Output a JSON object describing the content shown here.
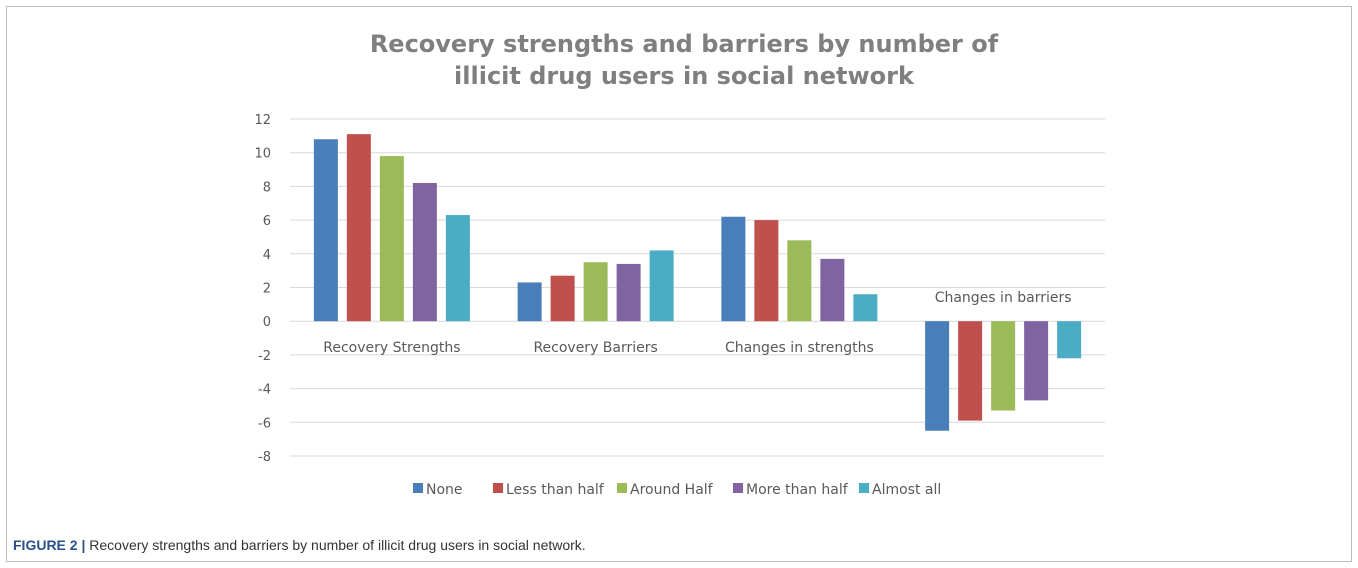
{
  "caption": {
    "label": "FIGURE 2 |",
    "text": " Recovery strengths and barriers by number of illicit drug users in social network."
  },
  "chart_data": {
    "type": "bar",
    "title": "Recovery strengths and barriers by number of illicit drug users in social network",
    "title_lines": [
      "Recovery strengths and barriers by number of",
      "illicit drug users in social network"
    ],
    "categories": [
      "Recovery Strengths",
      "Recovery Barriers",
      "Changes in strengths",
      "Changes in barriers"
    ],
    "series": [
      {
        "name": "None",
        "color": "#4a7ebb",
        "values": [
          10.8,
          2.3,
          6.2,
          -6.5
        ]
      },
      {
        "name": "Less than half",
        "color": "#c0504d",
        "values": [
          11.1,
          2.7,
          6.0,
          -5.9
        ]
      },
      {
        "name": "Around Half",
        "color": "#9bbb59",
        "values": [
          9.8,
          3.5,
          4.8,
          -5.3
        ]
      },
      {
        "name": "More than half",
        "color": "#8064a2",
        "values": [
          8.2,
          3.4,
          3.7,
          -4.7
        ]
      },
      {
        "name": "Almost all",
        "color": "#4bacc6",
        "values": [
          6.3,
          4.2,
          1.6,
          -2.2
        ]
      }
    ],
    "yticks": [
      "12",
      "10",
      "8",
      "6",
      "4",
      "2",
      "0",
      "-2",
      "-4",
      "-6",
      "-8"
    ],
    "ylim": [
      -8,
      12
    ],
    "xlabel": "",
    "ylabel": "",
    "grid": true,
    "legend": "bottom"
  }
}
